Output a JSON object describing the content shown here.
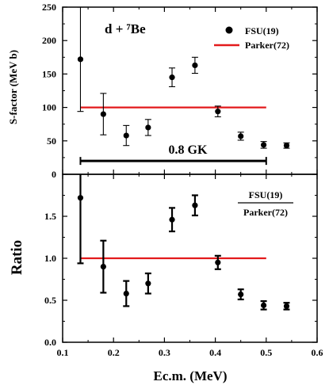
{
  "chart_data": [
    {
      "type": "scatter",
      "panel": "top",
      "annotation": "d + ⁷Be",
      "ylabel": "S-factor (MeV b)",
      "xlim": [
        0.1,
        0.6
      ],
      "ylim": [
        0,
        250
      ],
      "yticks": [
        0,
        50,
        100,
        150,
        200,
        250
      ],
      "grid": false,
      "legend_position": "top-right",
      "series": [
        {
          "name": "FSU(19)",
          "style": "points-with-error-bars",
          "x": [
            0.135,
            0.18,
            0.225,
            0.268,
            0.315,
            0.36,
            0.405,
            0.45,
            0.495,
            0.54
          ],
          "y": [
            172,
            90,
            58,
            70,
            145,
            163,
            94,
            57,
            44,
            43
          ],
          "yerr": [
            78,
            31,
            15,
            12,
            14,
            12,
            8,
            6,
            5,
            4
          ]
        },
        {
          "name": "Parker(72)",
          "style": "line",
          "x": [
            0.135,
            0.5
          ],
          "y": [
            100,
            100
          ]
        }
      ],
      "range_bar": {
        "label": "0.8 GK",
        "x": [
          0.135,
          0.5
        ],
        "y": 20
      }
    },
    {
      "type": "scatter",
      "panel": "bottom",
      "annotation_numerator": "FSU(19)",
      "annotation_denominator": "Parker(72)",
      "xlabel": "Ec.m. (MeV)",
      "ylabel": "Ratio",
      "xlim": [
        0.1,
        0.6
      ],
      "ylim": [
        0,
        2.0
      ],
      "xticks": [
        0.1,
        0.2,
        0.3,
        0.4,
        0.5,
        0.6
      ],
      "xticklabels": [
        "0.1",
        "0.2",
        "0.3",
        "0.4",
        "0.5",
        "0.6"
      ],
      "yticks": [
        0.0,
        0.5,
        1.0,
        1.5
      ],
      "yticklabels": [
        "0.0",
        "0.5",
        "1.0",
        "1.5"
      ],
      "grid": false,
      "series": [
        {
          "name": "ratio",
          "style": "points-with-error-bars",
          "x": [
            0.135,
            0.18,
            0.225,
            0.268,
            0.315,
            0.36,
            0.405,
            0.45,
            0.495,
            0.54
          ],
          "y": [
            1.72,
            0.9,
            0.58,
            0.7,
            1.46,
            1.63,
            0.95,
            0.57,
            0.44,
            0.43
          ],
          "yerr": [
            0.78,
            0.31,
            0.15,
            0.12,
            0.14,
            0.12,
            0.08,
            0.06,
            0.05,
            0.04
          ]
        },
        {
          "name": "unity",
          "style": "line",
          "x": [
            0.135,
            0.5
          ],
          "y": [
            1.0,
            1.0
          ]
        }
      ]
    }
  ],
  "colors": {
    "data": "#000000",
    "reference_line": "#e31a1c",
    "axes": "#000000"
  }
}
